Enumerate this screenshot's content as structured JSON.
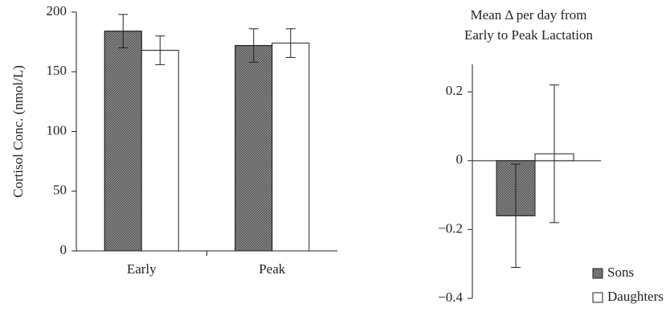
{
  "chart_data": [
    {
      "type": "bar",
      "ylabel": "Cortisol Conc. (nmol/L)",
      "categories": [
        "Early",
        "Peak"
      ],
      "series": [
        {
          "name": "Sons",
          "color": "#8a8a8a",
          "values": [
            184,
            172
          ],
          "errors": [
            14,
            14
          ]
        },
        {
          "name": "Daughters",
          "color": "#ffffff",
          "values": [
            168,
            174
          ],
          "errors": [
            12,
            12
          ]
        }
      ],
      "ylim": [
        0,
        200
      ],
      "yticks": [
        0,
        50,
        100,
        150,
        200
      ]
    },
    {
      "type": "bar",
      "title": [
        "Mean Δ per day from",
        "Early to Peak Lactation"
      ],
      "categories": [
        null
      ],
      "series": [
        {
          "name": "Sons",
          "color": "#8a8a8a",
          "values": [
            -0.16
          ],
          "errors": [
            0.15
          ]
        },
        {
          "name": "Daughters",
          "color": "#ffffff",
          "values": [
            0.02
          ],
          "errors": [
            0.2
          ]
        }
      ],
      "ylim": [
        -0.4,
        0.28
      ],
      "yticks": [
        {
          "value": -0.4,
          "label": "−0.4"
        },
        {
          "value": -0.2,
          "label": "−0.2"
        },
        0,
        0.2
      ],
      "legend": "lower-right"
    }
  ]
}
